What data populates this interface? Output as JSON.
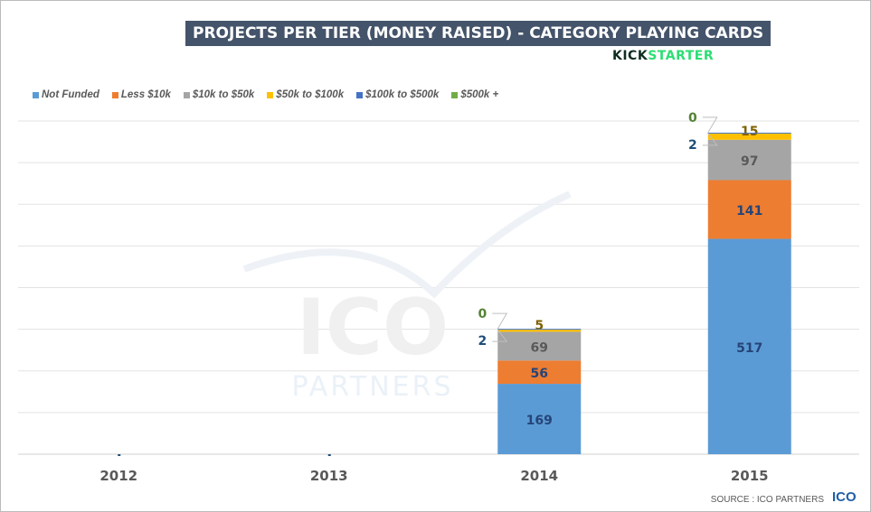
{
  "title": "PROJECTS PER TIER (MONEY RAISED) - CATEGORY PLAYING CARDS",
  "brand": {
    "part1": "KICK",
    "part2": "STARTER"
  },
  "watermark": {
    "line1": "ICO",
    "line2": "PARTNERS"
  },
  "source": "SOURCE : ICO PARTNERS",
  "logo": "ICO",
  "chart_data": {
    "type": "bar",
    "stacked": true,
    "categories": [
      "2012",
      "2013",
      "2014",
      "2015"
    ],
    "series": [
      {
        "name": "Not Funded",
        "color": "#5b9bd5",
        "values": [
          0,
          0,
          169,
          517
        ]
      },
      {
        "name": "Less $10k",
        "color": "#ed7d31",
        "values": [
          0,
          0,
          56,
          141
        ]
      },
      {
        "name": "$10k to $50k",
        "color": "#a5a5a5",
        "values": [
          0,
          0,
          69,
          97
        ]
      },
      {
        "name": "$50k to $100k",
        "color": "#ffc000",
        "values": [
          0,
          0,
          5,
          15
        ]
      },
      {
        "name": "$100k to $500k",
        "color": "#4472c4",
        "values": [
          0,
          0,
          2,
          2
        ]
      },
      {
        "name": "$500k +",
        "color": "#70ad47",
        "values": [
          0,
          0,
          0,
          0
        ]
      }
    ],
    "label_colors": [
      "#264478",
      "#264478",
      "#595959",
      "#7f6000",
      "#1f4e79",
      "#548235"
    ],
    "ylim": [
      0,
      800
    ],
    "grid": true,
    "legend": "top-left"
  }
}
